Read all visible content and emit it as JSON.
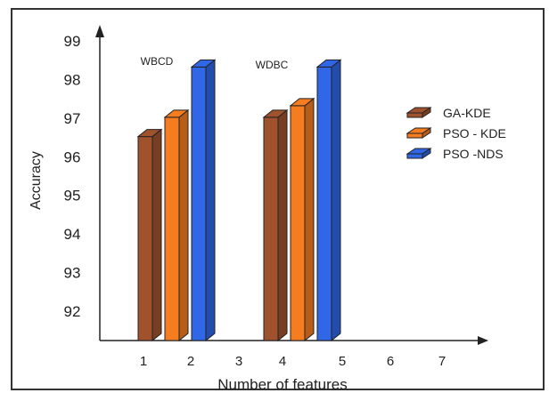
{
  "chart_data": {
    "type": "bar",
    "title": "",
    "xlabel": "Number of features",
    "ylabel": "Accuracy",
    "ylim": [
      91.3,
      99
    ],
    "yticks": [
      92,
      93,
      94,
      95,
      96,
      97,
      98,
      99
    ],
    "xticks": [
      "1",
      "2",
      "3",
      "4",
      "5",
      "6",
      "7"
    ],
    "groups": [
      "WBCD",
      "WDBC"
    ],
    "series": [
      {
        "name": "GA-KDE",
        "color": "#a0522d",
        "values": [
          96.5,
          97.0
        ]
      },
      {
        "name": "PSO - KDE",
        "color": "#f57c1f",
        "values": [
          97.0,
          97.3
        ]
      },
      {
        "name": "PSO -NDS",
        "color": "#2f67e6",
        "values": [
          98.3,
          98.3
        ]
      }
    ],
    "legend_position": "right",
    "grid": false
  }
}
